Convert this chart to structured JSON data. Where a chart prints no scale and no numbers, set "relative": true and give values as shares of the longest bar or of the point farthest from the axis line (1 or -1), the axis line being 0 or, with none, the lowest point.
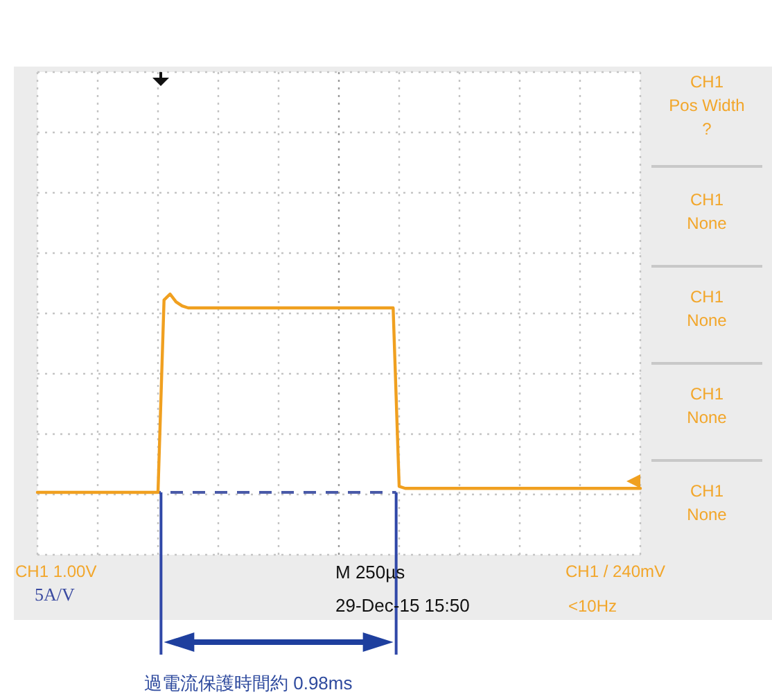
{
  "chart_data": {
    "type": "line",
    "relative": true,
    "grid": true,
    "line_style": "solid",
    "categories": [
      null,
      null,
      null,
      null,
      null,
      null,
      null,
      null,
      null,
      null,
      null,
      null,
      null,
      null,
      null,
      null,
      null,
      null,
      null,
      null,
      null,
      null,
      null,
      null,
      null,
      null,
      null,
      null,
      null,
      null,
      null,
      null,
      null,
      null,
      null,
      null,
      null,
      null,
      null,
      null,
      null,
      null,
      null,
      null,
      null,
      null,
      null,
      null,
      null,
      null,
      null,
      null,
      null,
      null,
      null,
      null,
      null,
      null,
      null,
      null,
      null,
      null,
      null,
      null,
      null,
      null,
      null,
      null,
      null,
      null,
      null,
      null,
      null,
      null,
      null,
      null,
      null,
      null,
      null,
      null,
      null,
      null,
      null,
      null,
      null,
      null,
      null,
      null,
      null,
      null,
      null,
      null,
      null,
      null,
      null,
      null,
      null,
      null,
      null,
      null,
      null
    ],
    "series": [
      {
        "color": "#f0a020",
        "values": [
          0,
          0,
          0,
          0,
          0,
          0,
          0,
          0,
          0,
          0,
          0,
          0,
          0,
          0,
          0,
          0,
          0,
          0,
          0,
          0,
          0,
          0.97,
          1,
          0.96,
          0.94,
          0.93,
          0.93,
          0.93,
          0.93,
          0.93,
          0.93,
          0.93,
          0.93,
          0.93,
          0.93,
          0.93,
          0.93,
          0.93,
          0.93,
          0.93,
          0.93,
          0.93,
          0.93,
          0.93,
          0.93,
          0.93,
          0.93,
          0.93,
          0.93,
          0.93,
          0.93,
          0.93,
          0.93,
          0.93,
          0.93,
          0.93,
          0.93,
          0.93,
          0.93,
          0.93,
          0.03,
          0.02,
          0.02,
          0.02,
          0.02,
          0.02,
          0.02,
          0.02,
          0.02,
          0.02,
          0.02,
          0.02,
          0.02,
          0.02,
          0.02,
          0.02,
          0.02,
          0.02,
          0.02,
          0.02,
          0.02,
          0.02,
          0.02,
          0.02,
          0.02,
          0.02,
          0.02,
          0.02,
          0.02,
          0.02,
          0.02,
          0.02,
          0.02,
          0.02,
          0.02,
          0.02,
          0.02,
          0.02,
          0.02,
          0.02,
          0.02
        ]
      }
    ],
    "annotations": [
      "CH1\nPos Width\n?",
      "CH1\nNone",
      "CH1\nNone",
      "CH1\nNone",
      "CH1\nNone",
      "CH1  1.00V",
      "5A/V",
      "M 250µs",
      "29-Dec-15 15:50",
      "CH1 / 240mV",
      "<10Hz",
      "過電流保護時間約 0.98ms"
    ]
  }
}
